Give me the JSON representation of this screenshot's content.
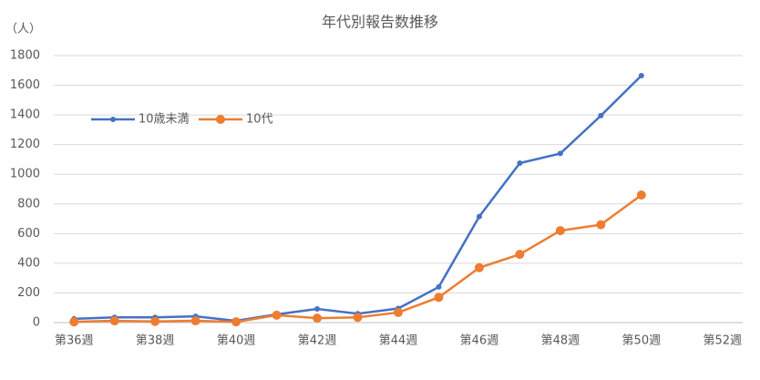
{
  "chart_data": {
    "type": "line",
    "title": "年代別報告数推移",
    "y_label": "（人）",
    "categories": [
      "第36週",
      null,
      "第38週",
      null,
      "第40週",
      null,
      "第42週",
      null,
      "第44週",
      null,
      "第46週",
      null,
      "第48週",
      null,
      "第50週",
      null,
      "第52週"
    ],
    "series": [
      {
        "name": "10歳未満",
        "color": "#4472c4",
        "marker_size": 3,
        "values": [
          25,
          35,
          35,
          42,
          12,
          55,
          92,
          60,
          95,
          240,
          715,
          1075,
          1140,
          1395,
          1665,
          null,
          null
        ]
      },
      {
        "name": "10代",
        "color": "#ed7d31",
        "marker_size": 5,
        "values": [
          5,
          12,
          8,
          12,
          5,
          50,
          30,
          35,
          68,
          170,
          370,
          460,
          620,
          660,
          860,
          null,
          null
        ]
      }
    ],
    "ylim": [
      0,
      1800
    ],
    "yticks": [
      0,
      200,
      400,
      600,
      800,
      1000,
      1200,
      1400,
      1600,
      1800
    ],
    "grid": true,
    "legend": "upper-left"
  }
}
